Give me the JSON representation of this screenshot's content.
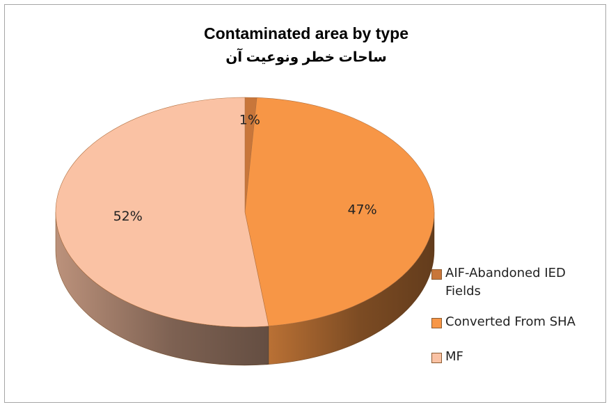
{
  "chart_data": {
    "type": "pie3d",
    "title": "Contaminated area by type",
    "subtitle": "ساحات خطر ونوعیت  آن",
    "categories": [
      "AIF-Abandoned IED Fields",
      "Converted From SHA",
      "MF"
    ],
    "values": [
      1,
      47,
      52
    ],
    "value_labels": [
      "1%",
      "47%",
      "52%"
    ],
    "colors": [
      "#c8763a",
      "#f79646",
      "#fac2a4"
    ],
    "legend": "right"
  }
}
